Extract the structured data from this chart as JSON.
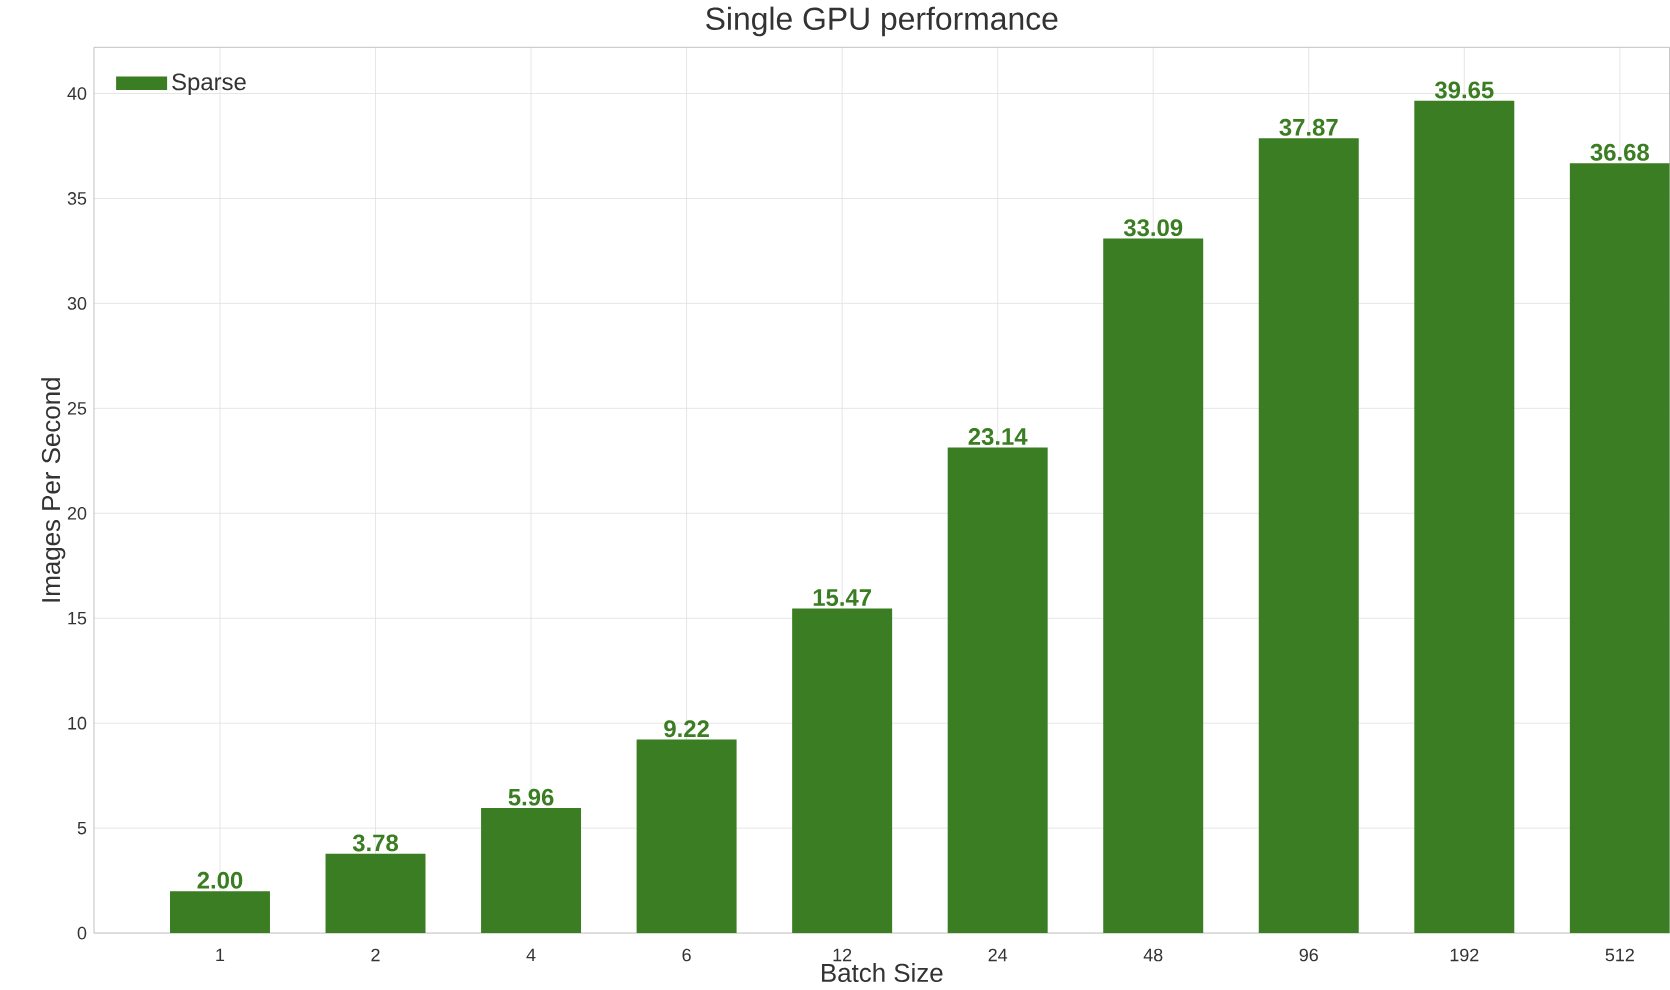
{
  "chart_data": {
    "type": "bar",
    "title": "Single GPU performance",
    "xlabel": "Batch Size",
    "ylabel": "Images Per Second",
    "categories": [
      "1",
      "2",
      "4",
      "6",
      "12",
      "24",
      "48",
      "96",
      "192",
      "512"
    ],
    "series": [
      {
        "name": "Sparse",
        "color": "#3a7d22",
        "values": [
          2.0,
          3.78,
          5.96,
          9.22,
          15.47,
          23.14,
          33.09,
          37.87,
          39.65,
          36.68
        ],
        "value_labels": [
          "2.00",
          "3.78",
          "5.96",
          "9.22",
          "15.47",
          "23.14",
          "33.09",
          "37.87",
          "39.65",
          "36.68"
        ]
      }
    ],
    "ylim": [
      0,
      42.2
    ],
    "yticks": [
      0,
      5,
      10,
      15,
      20,
      25,
      30,
      35,
      40
    ],
    "grid": true,
    "legend": "top left"
  }
}
